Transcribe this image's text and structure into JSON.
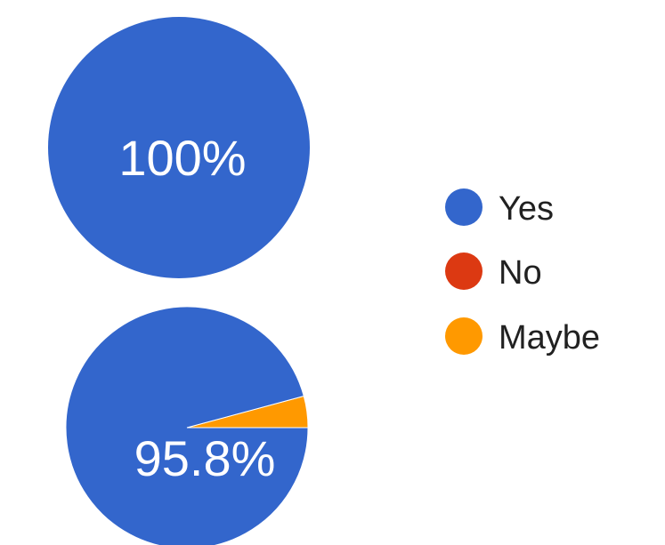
{
  "chart_data": [
    {
      "type": "pie",
      "categories": [
        "Yes",
        "No",
        "Maybe"
      ],
      "values": [
        100,
        0,
        0
      ],
      "data_label": "100%",
      "colors": [
        "#3366cc",
        "#dc3912",
        "#ff9900"
      ]
    },
    {
      "type": "pie",
      "categories": [
        "Yes",
        "No",
        "Maybe"
      ],
      "values": [
        95.8,
        0,
        4.2
      ],
      "data_label": "95.8%",
      "colors": [
        "#3366cc",
        "#dc3912",
        "#ff9900"
      ]
    }
  ],
  "legend": {
    "placement": "right",
    "items": [
      {
        "label": "Yes",
        "color": "#3366cc"
      },
      {
        "label": "No",
        "color": "#dc3912"
      },
      {
        "label": "Maybe",
        "color": "#ff9900"
      }
    ]
  }
}
